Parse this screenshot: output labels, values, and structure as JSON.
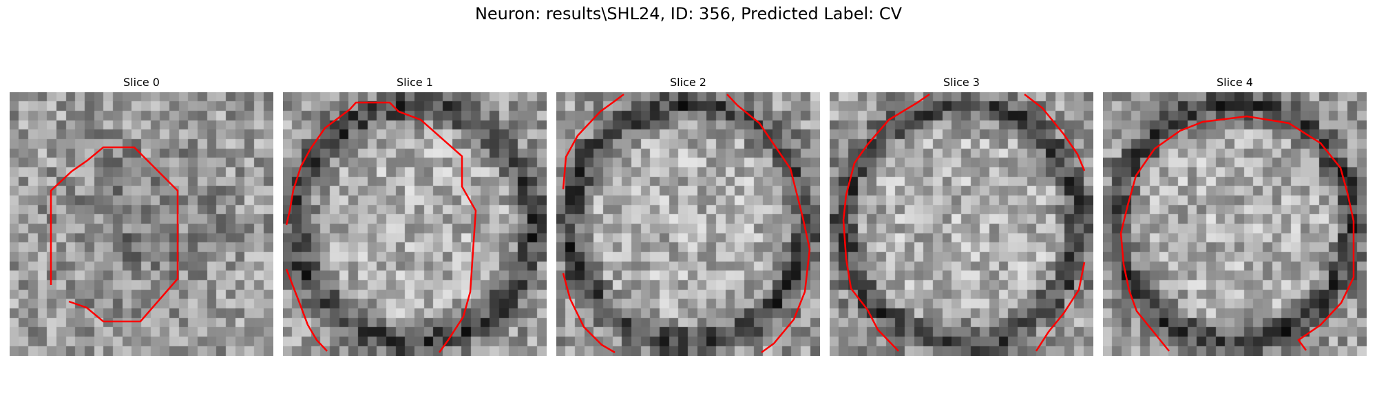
{
  "figure": {
    "title": "Neuron: results\\SHL24, ID: 356, Predicted Label: CV",
    "contour_color": "#ff0000"
  },
  "panels": [
    {
      "title": "Slice 0",
      "seed": 11,
      "contour": "roundish"
    },
    {
      "title": "Slice 1",
      "seed": 23,
      "contour": "partial"
    },
    {
      "title": "Slice 2",
      "seed": 37,
      "contour": "partial"
    },
    {
      "title": "Slice 3",
      "seed": 41,
      "contour": "partial"
    },
    {
      "title": "Slice 4",
      "seed": 53,
      "contour": "partial"
    }
  ]
}
